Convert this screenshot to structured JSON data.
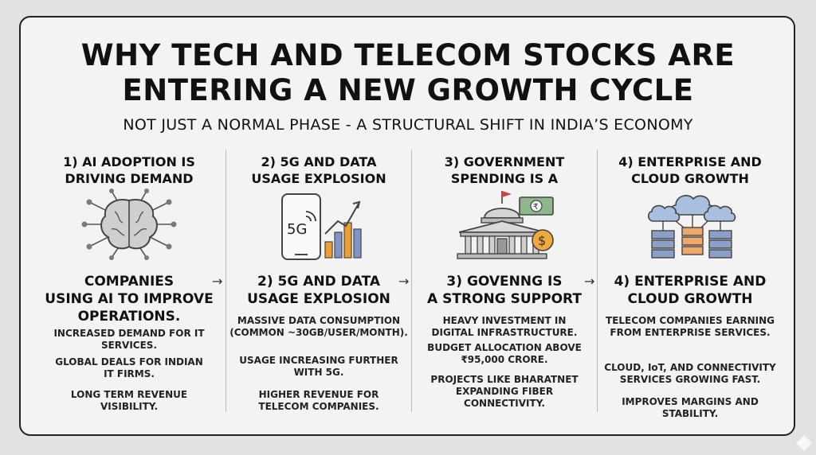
{
  "title_line1": "WHY TECH AND TELECOM STOCKS ARE",
  "title_line2": "ENTERING A NEW GROWTH CYCLE",
  "subtitle": "NOT JUST A NORMAL PHASE - A STRUCTURAL SHIFT IN INDIA’S ECONOMY",
  "icons": {
    "col1": "brain-circuit-icon",
    "col2": "phone-5g-chart-icon",
    "col3": "government-building-money-icon",
    "col4": "cloud-server-icon"
  },
  "icon_text": {
    "phone_5g": "5G",
    "rupee": "₹",
    "dollar": "$"
  },
  "arrow_glyph": "→",
  "columns": [
    {
      "heading": [
        "1) AI ADOPTION IS",
        "DRIVING DEMAND"
      ],
      "subheading": [
        "COMPANIES",
        "USING AI TO IMPROVE",
        "OPERATIONS."
      ],
      "bullets": [
        [
          "INCREASED DEMAND FOR IT",
          "SERVICES."
        ],
        [
          "GLOBAL DEALS FOR INDIAN",
          "IT FIRMS."
        ],
        [
          "LONG TERM REVENUE",
          "VISIBILITY."
        ]
      ]
    },
    {
      "heading": [
        "2) 5G AND DATA",
        "USAGE EXPLOSION"
      ],
      "subheading": [
        "2) 5G AND DATA",
        "USAGE EXPLOSION"
      ],
      "bullets": [
        [
          "MASSIVE DATA CONSUMPTION",
          "(COMMON ~30GB/USER/MONTH)."
        ],
        [
          "USAGE INCREASING FURTHER",
          "WITH 5G."
        ],
        [
          "HIGHER REVENUE FOR",
          "TELECOM COMPANIES."
        ]
      ]
    },
    {
      "heading": [
        "3) GOVERNMENT",
        "SPENDING IS A"
      ],
      "subheading": [
        "3) GOVENNG IS",
        "A STRONG SUPPORT"
      ],
      "bullets": [
        [
          "HEAVY INVESTMENT IN",
          "DIGITAL INFRASTRUCTURE."
        ],
        [
          "BUDGET ALLOCATION ABOVE",
          "₹95,000 CRORE."
        ],
        [
          "PROJECTS LIKE BHARATNET",
          "EXPANDING FIBER",
          "CONNECTIVITY."
        ]
      ]
    },
    {
      "heading": [
        "4) ENTERPRISE AND",
        "CLOUD GROWTH"
      ],
      "subheading": [
        "4) ENTERPRISE AND",
        "CLOUD GROWTH"
      ],
      "bullets": [
        [
          "TELECOM COMPANIES EARNING",
          "FROM ENTERPRISE SERVICES."
        ],
        [
          "CLOUD, IoT, AND CONNECTIVITY",
          "SERVICES GROWING FAST."
        ],
        [
          "IMPROVES MARGINS AND",
          "STABILITY."
        ]
      ]
    }
  ]
}
